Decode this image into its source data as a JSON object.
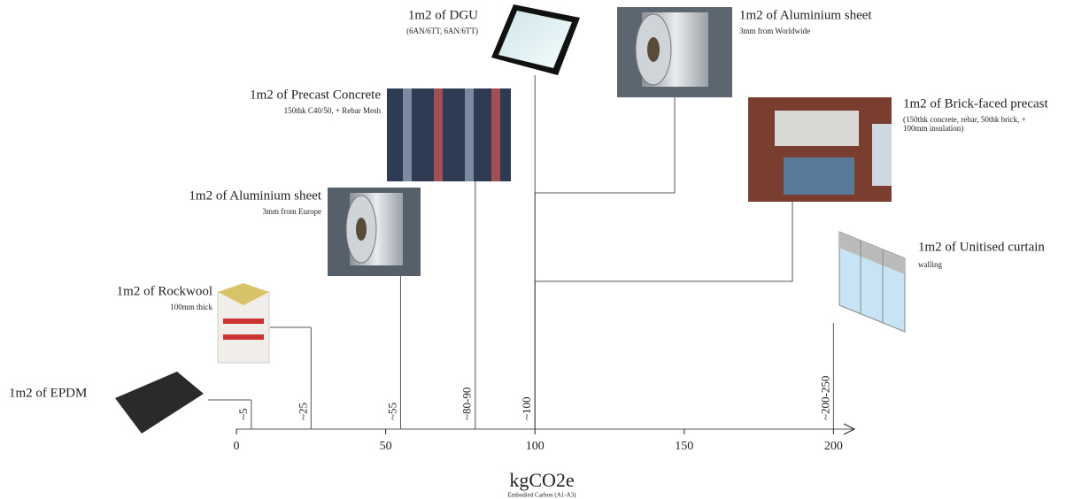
{
  "chart_data": {
    "type": "strip",
    "xlabel": "kgCO2e",
    "xsublabel": "Embodied Carbon (A1-A3)",
    "xlim": [
      0,
      207
    ],
    "xticks": [
      0,
      50,
      100,
      150,
      200
    ],
    "items": [
      {
        "name": "1m2 of EPDM",
        "value": 5,
        "value_label": "~5"
      },
      {
        "name": "1m2 of Rockwool",
        "note": [
          "100mm thick"
        ],
        "value": 25,
        "value_label": "~25"
      },
      {
        "name": "1m2 of Aluminium sheet",
        "note": [
          "3mm from Europe"
        ],
        "value": 55,
        "value_label": "~55"
      },
      {
        "name": "1m2 of Precast Concrete",
        "note": [
          "150thk C40/50, + Rebar Mesh"
        ],
        "value": 80,
        "value_label": "~80-90"
      },
      {
        "name": "1m2 of DGU",
        "note": [
          "(6AN/6TT, 6AN/6TT)"
        ],
        "value": 100,
        "value_label": "~100"
      },
      {
        "name": "1m2 of Aluminium sheet",
        "note": [
          "3mm from Worldwide"
        ],
        "value": 100
      },
      {
        "name": "1m2 of Brick-faced precast",
        "note": [
          "(150thk concrete, rebar, 50thk brick, +",
          "100mm insulation)"
        ],
        "value": 100
      },
      {
        "name": "1m2 of Unitised curtain",
        "note": [
          "walling"
        ],
        "value": 200,
        "value_label": "~200-250"
      }
    ]
  }
}
